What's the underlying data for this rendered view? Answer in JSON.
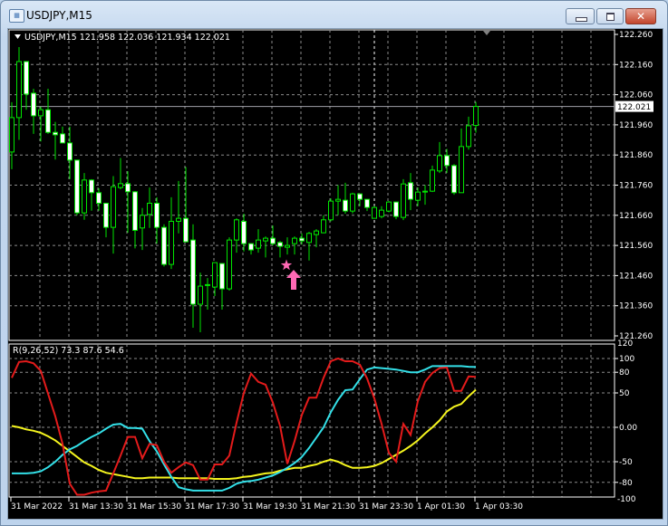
{
  "window": {
    "title": "USDJPY,M15",
    "app_icon": "chart-window-icon",
    "buttons": [
      "minimize",
      "restore",
      "close"
    ]
  },
  "main_pane": {
    "header": "USDJPY,M15  121.958 122.036 121.934 122.021",
    "symbol": "USDJPY,M15",
    "ohlc": {
      "open": "121.958",
      "high": "122.036",
      "low": "121.934",
      "close": "122.021"
    },
    "current_price_label": "122.021",
    "price_ticks": [
      "122.260",
      "122.160",
      "122.060",
      "121.960",
      "121.860",
      "121.760",
      "121.660",
      "121.560",
      "121.460",
      "121.360",
      "121.260"
    ],
    "colors": {
      "bull_outline": "#00e600",
      "bear_fill": "#ffffff",
      "wick": "#00e600",
      "grid": "#8c8c8c",
      "marker": "#ff69b4"
    },
    "markers": [
      "star-icon",
      "up-arrow-icon"
    ]
  },
  "indicator_pane": {
    "header": "R(9,26,52) 73.3 87.6 54.6",
    "ticks": [
      "120",
      "100",
      "80",
      "50",
      "0.00",
      "-50",
      "-80",
      "-100"
    ],
    "colors": {
      "fast": "#e41b1b",
      "mid": "#33e0e8",
      "slow": "#f5f51e"
    }
  },
  "time_axis": [
    "31 Mar 2022",
    "31 Mar 13:30",
    "31 Mar 15:30",
    "31 Mar 17:30",
    "31 Mar 19:30",
    "31 Mar 21:30",
    "31 Mar 23:30",
    "1 Apr 01:30",
    "1 Apr 03:30"
  ],
  "chart_data": {
    "type": "candlestick",
    "ylim": [
      121.26,
      122.26
    ],
    "candles_ohlc": [
      [
        121.87,
        122.035,
        121.813,
        121.984
      ],
      [
        121.984,
        122.218,
        121.91,
        122.17
      ],
      [
        122.17,
        122.17,
        122.01,
        122.062
      ],
      [
        122.065,
        122.08,
        121.93,
        121.99
      ],
      [
        121.99,
        122.02,
        121.905,
        122.01
      ],
      [
        122.01,
        122.08,
        121.93,
        121.935
      ],
      [
        121.935,
        121.97,
        121.845,
        121.927
      ],
      [
        121.93,
        121.954,
        121.9,
        121.9
      ],
      [
        121.9,
        121.954,
        121.78,
        121.843
      ],
      [
        121.843,
        121.843,
        121.66,
        121.668
      ],
      [
        121.668,
        121.8,
        121.645,
        121.777
      ],
      [
        121.777,
        121.78,
        121.675,
        121.735
      ],
      [
        121.735,
        121.75,
        121.675,
        121.7
      ],
      [
        121.7,
        121.7,
        121.587,
        121.62
      ],
      [
        121.62,
        121.79,
        121.533,
        121.755
      ],
      [
        121.752,
        121.85,
        121.746,
        121.765
      ],
      [
        121.765,
        121.806,
        121.602,
        121.738
      ],
      [
        121.738,
        121.74,
        121.55,
        121.61
      ],
      [
        121.618,
        121.684,
        121.545,
        121.66
      ],
      [
        121.663,
        121.752,
        121.618,
        121.7
      ],
      [
        121.7,
        121.72,
        121.566,
        121.62
      ],
      [
        121.62,
        121.63,
        121.49,
        121.497
      ],
      [
        121.497,
        121.72,
        121.482,
        121.64
      ],
      [
        121.64,
        121.774,
        121.6,
        121.65
      ],
      [
        121.65,
        121.82,
        121.57,
        121.572
      ],
      [
        121.578,
        121.63,
        121.287,
        121.365
      ],
      [
        121.365,
        121.47,
        121.272,
        121.425
      ],
      [
        121.428,
        121.452,
        121.347,
        121.43
      ],
      [
        121.422,
        121.503,
        121.392,
        121.503
      ],
      [
        121.5,
        121.5,
        121.347,
        121.416
      ],
      [
        121.416,
        121.587,
        121.41,
        121.578
      ],
      [
        121.578,
        121.65,
        121.536,
        121.645
      ],
      [
        121.64,
        121.665,
        121.54,
        121.566
      ],
      [
        121.566,
        121.566,
        121.53,
        121.545
      ],
      [
        121.551,
        121.614,
        121.536,
        121.578
      ],
      [
        121.575,
        121.59,
        121.52,
        121.584
      ],
      [
        121.584,
        121.626,
        121.56,
        121.566
      ],
      [
        121.57,
        121.575,
        121.52,
        121.557
      ],
      [
        121.554,
        121.587,
        121.53,
        121.56
      ],
      [
        121.566,
        121.59,
        121.53,
        121.584
      ],
      [
        121.584,
        121.6,
        121.563,
        121.575
      ],
      [
        121.57,
        121.605,
        121.51,
        121.6
      ],
      [
        121.596,
        121.614,
        121.554,
        121.608
      ],
      [
        121.602,
        121.66,
        121.6,
        121.645
      ],
      [
        121.645,
        121.716,
        121.64,
        121.707
      ],
      [
        121.707,
        121.76,
        121.66,
        121.713
      ],
      [
        121.71,
        121.768,
        121.665,
        121.674
      ],
      [
        121.674,
        121.735,
        121.666,
        121.731
      ],
      [
        121.731,
        121.731,
        121.69,
        121.713
      ],
      [
        121.713,
        121.713,
        121.674,
        121.686
      ],
      [
        121.65,
        121.69,
        121.65,
        121.686
      ],
      [
        121.656,
        121.69,
        121.65,
        121.677
      ],
      [
        121.674,
        121.707,
        121.67,
        121.704
      ],
      [
        121.704,
        121.704,
        121.647,
        121.656
      ],
      [
        121.653,
        121.78,
        121.644,
        121.764
      ],
      [
        121.768,
        121.8,
        121.677,
        121.713
      ],
      [
        121.71,
        121.752,
        121.69,
        121.737
      ],
      [
        121.74,
        121.76,
        121.695,
        121.74
      ],
      [
        121.74,
        121.825,
        121.737,
        121.81
      ],
      [
        121.807,
        121.903,
        121.8,
        121.858
      ],
      [
        121.858,
        121.88,
        121.8,
        121.825
      ],
      [
        121.825,
        121.83,
        121.728,
        121.735
      ],
      [
        121.735,
        121.948,
        121.735,
        121.888
      ],
      [
        121.888,
        121.987,
        121.878,
        121.957
      ],
      [
        121.958,
        122.036,
        121.934,
        122.021
      ]
    ],
    "current_price": 122.021,
    "marker_candle_index": 38,
    "indicator": {
      "ylim": [
        -100,
        120
      ],
      "levels": [
        100,
        80,
        50,
        0,
        -50,
        -80
      ],
      "series": [
        {
          "values": [
            72,
            95,
            96,
            93,
            82,
            49,
            16,
            -24,
            -82,
            -98,
            -98,
            -95,
            -93,
            -92,
            -67,
            -41,
            -14,
            -14,
            -45,
            -24,
            -26,
            -50,
            -66,
            -58,
            -51,
            -55,
            -76,
            -76,
            -54,
            -54,
            -41,
            7,
            50,
            78,
            66,
            62,
            36,
            2,
            -53,
            -20,
            18,
            43,
            43,
            72,
            96,
            100,
            96,
            96,
            91,
            71,
            42,
            5,
            -37,
            -50,
            5,
            -11,
            38,
            66,
            79,
            86,
            87,
            53,
            53,
            74,
            73.3
          ]
        },
        {
          "values": [
            -67,
            -67,
            -67,
            -66,
            -64,
            -58,
            -50,
            -40,
            -32,
            -27,
            -20,
            -14,
            -9,
            -2,
            4,
            5,
            -1,
            -1,
            -2,
            -20,
            -35,
            -54,
            -72,
            -87,
            -90,
            -92,
            -92,
            -92,
            -92,
            -92,
            -88,
            -82,
            -79,
            -78,
            -76,
            -73,
            -70,
            -65,
            -59,
            -52,
            -43,
            -30,
            -15,
            0,
            22,
            40,
            54,
            55,
            70,
            84,
            87,
            86,
            85,
            84,
            82,
            80,
            80,
            84,
            89,
            89,
            89,
            89,
            89,
            88,
            87.6
          ]
        },
        {
          "values": [
            2,
            0,
            -3,
            -5,
            -8,
            -13,
            -19,
            -27,
            -35,
            -43,
            -51,
            -56,
            -62,
            -66,
            -68,
            -70,
            -72,
            -74,
            -74,
            -73,
            -73,
            -73,
            -73,
            -74,
            -74,
            -74,
            -74,
            -74,
            -75,
            -75,
            -75,
            -74,
            -72,
            -71,
            -69,
            -67,
            -66,
            -63,
            -61,
            -59,
            -59,
            -56,
            -54,
            -50,
            -47,
            -50,
            -55,
            -59,
            -59,
            -58,
            -56,
            -52,
            -46,
            -40,
            -34,
            -27,
            -19,
            -9,
            0,
            10,
            23,
            30,
            34,
            45,
            54.6
          ]
        }
      ]
    }
  }
}
